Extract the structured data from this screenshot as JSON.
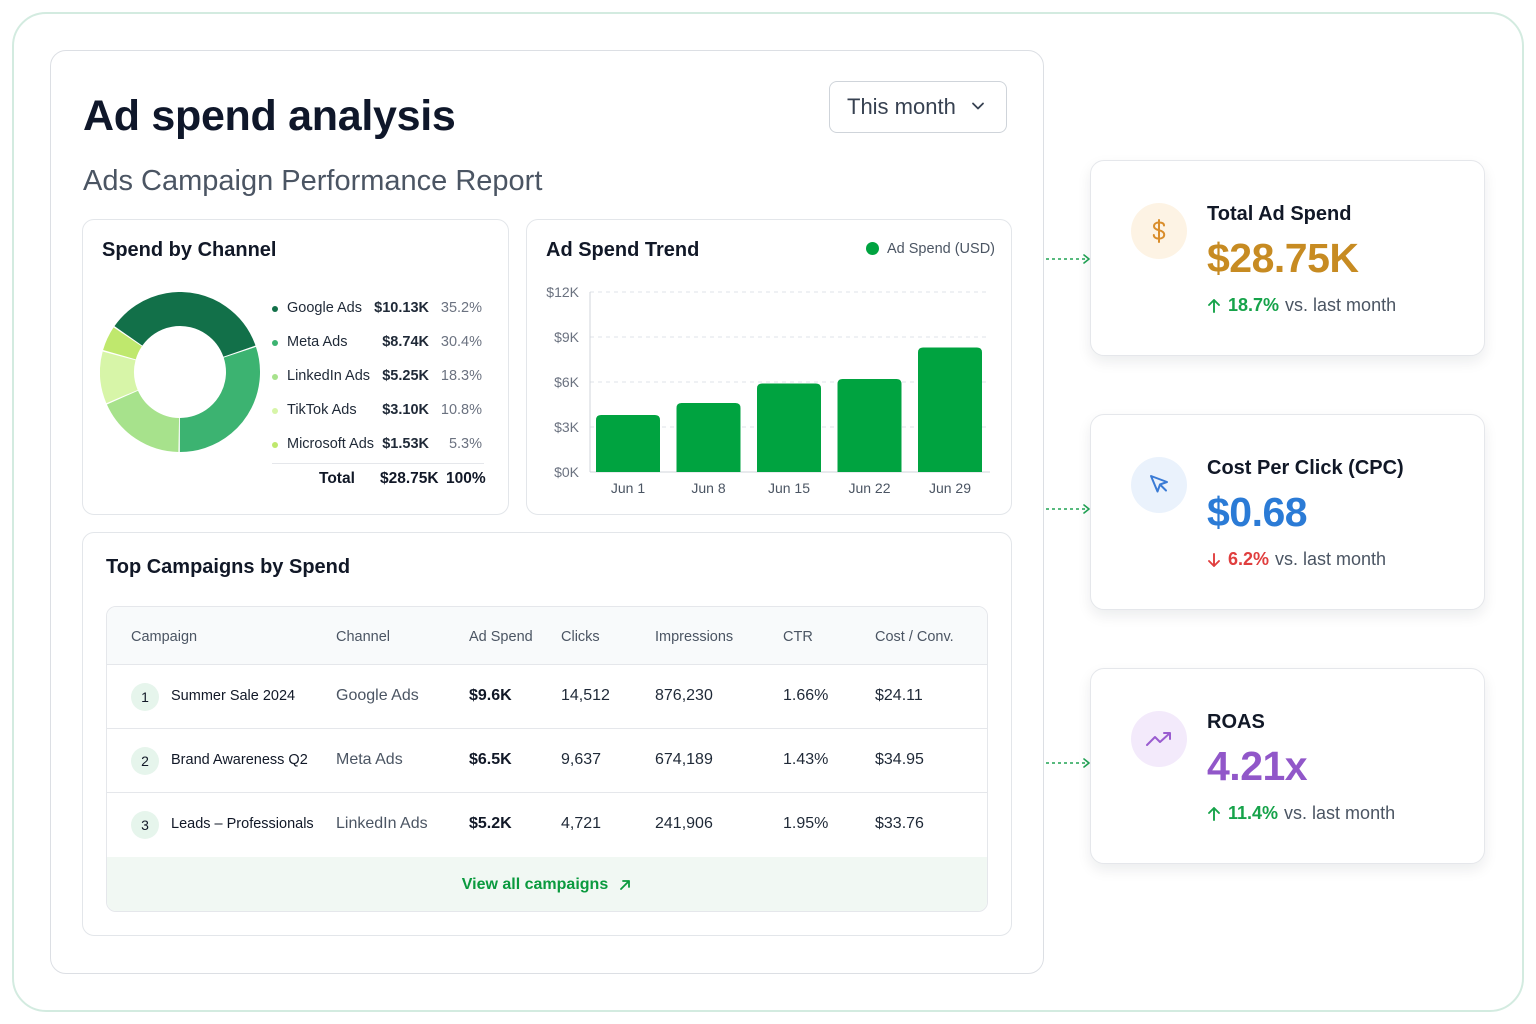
{
  "header": {
    "title": "Ad spend analysis",
    "subtitle": "Ads Campaign Performance Report",
    "range_label": "This month"
  },
  "spend_by_channel": {
    "title": "Spend by Channel",
    "channels": [
      {
        "name": "Google Ads",
        "value": "$10.13K",
        "pct": "35.2%",
        "share": 35.2,
        "color": "#127049"
      },
      {
        "name": "Meta Ads",
        "value": "$8.74K",
        "pct": "30.4%",
        "share": 30.4,
        "color": "#3cb371"
      },
      {
        "name": "LinkedIn Ads",
        "value": "$5.25K",
        "pct": "18.3%",
        "share": 18.3,
        "color": "#a7e28c"
      },
      {
        "name": "TikTok Ads",
        "value": "$3.10K",
        "pct": "10.8%",
        "share": 10.8,
        "color": "#d7f5a8"
      },
      {
        "name": "Microsoft Ads",
        "value": "$1.53K",
        "pct": "5.3%",
        "share": 5.3,
        "color": "#bfe86d"
      }
    ],
    "total_label": "Total",
    "total_value": "$28.75K",
    "total_pct": "100%"
  },
  "trend": {
    "title": "Ad Spend Trend",
    "legend": "Ad Spend (USD)",
    "color": "#00a340"
  },
  "chart_data": {
    "type": "bar",
    "categories": [
      "Jun 1",
      "Jun 8",
      "Jun 15",
      "Jun 22",
      "Jun 29"
    ],
    "series": [
      {
        "name": "Ad Spend (USD)",
        "values": [
          3800,
          4600,
          5900,
          6200,
          8300
        ]
      }
    ],
    "yticks": [
      "$0K",
      "$3K",
      "$6K",
      "$9K",
      "$12K"
    ],
    "ylim": [
      0,
      12000
    ],
    "grid": true,
    "legend_position": "top-right"
  },
  "campaigns": {
    "title": "Top Campaigns by Spend",
    "columns": [
      "Campaign",
      "Channel",
      "Ad Spend",
      "Clicks",
      "Impressions",
      "CTR",
      "Cost / Conv."
    ],
    "rows": [
      {
        "rank": "1",
        "name": "Summer Sale 2024",
        "channel": "Google Ads",
        "spend": "$9.6K",
        "clicks": "14,512",
        "impressions": "876,230",
        "ctr": "1.66%",
        "cost": "$24.11"
      },
      {
        "rank": "2",
        "name": "Brand Awareness Q2",
        "channel": "Meta Ads",
        "spend": "$6.5K",
        "clicks": "9,637",
        "impressions": "674,189",
        "ctr": "1.43%",
        "cost": "$34.95"
      },
      {
        "rank": "3",
        "name": "Leads – Professionals",
        "channel": "LinkedIn Ads",
        "spend": "$5.2K",
        "clicks": "4,721",
        "impressions": "241,906",
        "ctr": "1.95%",
        "cost": "$33.76"
      }
    ],
    "view_all": "View all campaigns"
  },
  "kpis": [
    {
      "title": "Total Ad Spend",
      "value": "$28.75K",
      "change": "18.7%",
      "suffix": "vs. last month",
      "direction": "up",
      "value_color": "#c78b22",
      "change_color": "#16a34a",
      "icon": "dollar-icon",
      "icon_bg": "#fdf3e4",
      "icon_color": "#d98d2b"
    },
    {
      "title": "Cost Per Click (CPC)",
      "value": "$0.68",
      "change": "6.2%",
      "suffix": "vs. last month",
      "direction": "down",
      "value_color": "#2b7bd6",
      "change_color": "#e03e3e",
      "icon": "cursor-icon",
      "icon_bg": "#eaf2fc",
      "icon_color": "#3a7bd5"
    },
    {
      "title": "ROAS",
      "value": "4.21x",
      "change": "11.4%",
      "suffix": "vs. last month",
      "direction": "up",
      "value_color": "#9157c9",
      "change_color": "#16a34a",
      "icon": "trend-up-icon",
      "icon_bg": "#f3eafb",
      "icon_color": "#9a5cd0"
    }
  ]
}
